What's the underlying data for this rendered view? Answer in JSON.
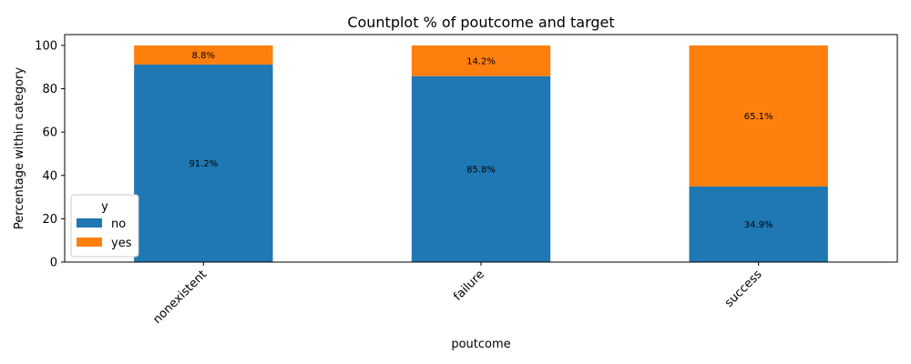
{
  "chart_data": {
    "type": "bar",
    "stacked": true,
    "title": "Countplot % of poutcome and target",
    "xlabel": "poutcome",
    "ylabel": "Percentage within category",
    "categories": [
      "nonexistent",
      "failure",
      "success"
    ],
    "series": [
      {
        "name": "no",
        "values": [
          91.2,
          85.8,
          34.9
        ],
        "labels": [
          "91.2%",
          "85.8%",
          "34.9%"
        ],
        "color": "#1f77b4"
      },
      {
        "name": "yes",
        "values": [
          8.8,
          14.2,
          65.1
        ],
        "labels": [
          "8.8%",
          "14.2%",
          "65.1%"
        ],
        "color": "#ff7f0e"
      }
    ],
    "ylim": [
      0,
      105
    ],
    "yticks": [
      0,
      20,
      40,
      60,
      80,
      100
    ],
    "xtick_rotation": 45,
    "legend": {
      "title": "y",
      "placement": "lower-left"
    },
    "grid": false
  }
}
